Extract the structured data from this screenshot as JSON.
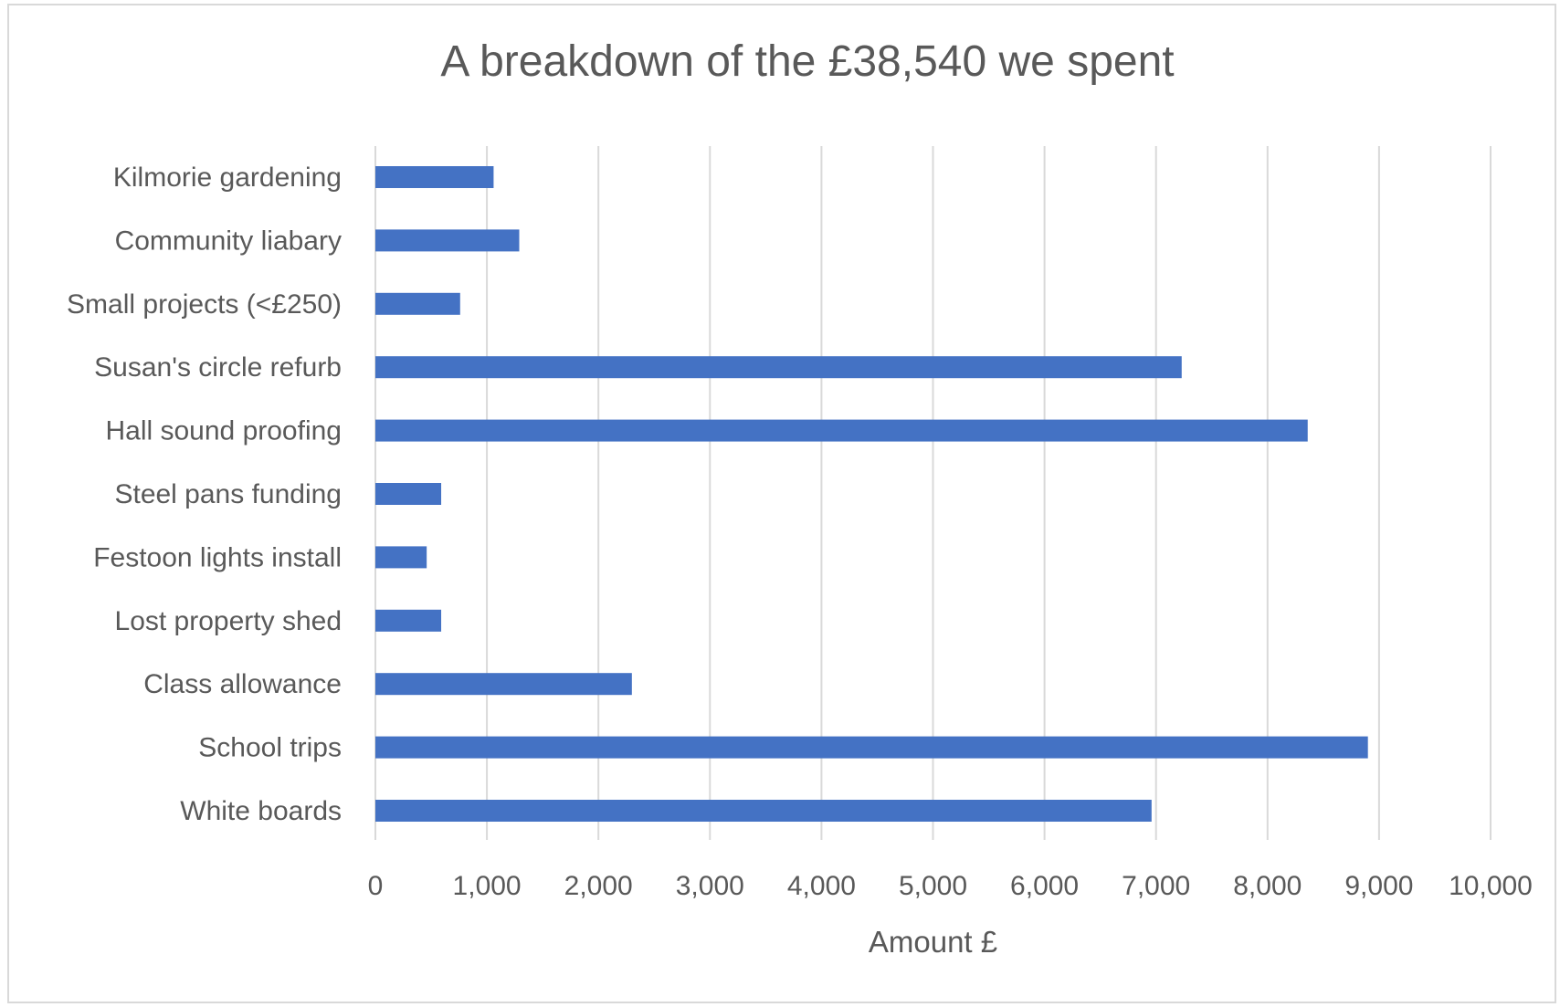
{
  "chart_data": {
    "type": "bar",
    "orientation": "horizontal",
    "title": "A breakdown of the £38,540 we spent",
    "xlabel": "Amount £",
    "ylabel": "",
    "xlim": [
      0,
      10000
    ],
    "xticks": [
      0,
      1000,
      2000,
      3000,
      4000,
      5000,
      6000,
      7000,
      8000,
      9000,
      10000
    ],
    "xtick_labels": [
      "0",
      "1,000",
      "2,000",
      "3,000",
      "4,000",
      "5,000",
      "6,000",
      "7,000",
      "8,000",
      "9,000",
      "10,000"
    ],
    "grid": "vertical",
    "legend": "none",
    "bar_color": "#4472c4",
    "categories": [
      "Kilmorie gardening",
      "Community liabary",
      "Small projects (<£250)",
      "Susan's circle refurb",
      "Hall sound proofing",
      "Steel pans funding",
      "Festoon lights install",
      "Lost property shed",
      "Class allowance",
      "School trips",
      "White boards"
    ],
    "values": [
      1060,
      1290,
      760,
      7230,
      8360,
      590,
      460,
      590,
      2300,
      8900,
      6960
    ]
  }
}
